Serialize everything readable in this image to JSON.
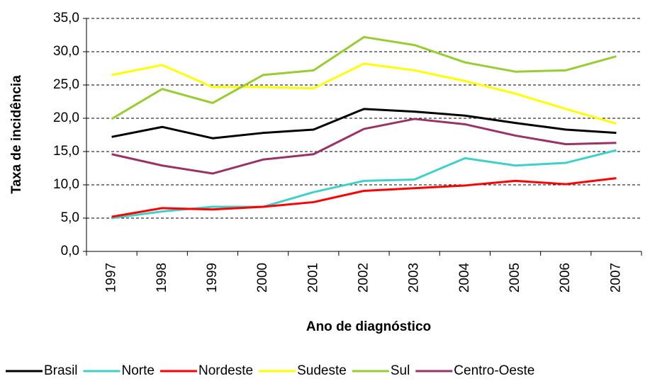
{
  "chart_data": {
    "type": "line",
    "x_label": "Ano de diagnóstico",
    "y_label": "Taxa de incidência",
    "categories": [
      "1997",
      "1998",
      "1999",
      "2000",
      "2001",
      "2002",
      "2003",
      "2004",
      "2005",
      "2006",
      "2007"
    ],
    "ylim": [
      0,
      35
    ],
    "yticks": [
      {
        "value": 0,
        "label": "0,0"
      },
      {
        "value": 5,
        "label": "5,0"
      },
      {
        "value": 10,
        "label": "10,0"
      },
      {
        "value": 15,
        "label": "15,0"
      },
      {
        "value": 20,
        "label": "20,0"
      },
      {
        "value": 25,
        "label": "25,0"
      },
      {
        "value": 30,
        "label": "30,0"
      },
      {
        "value": 35,
        "label": "35,0"
      }
    ],
    "grid": true,
    "legend": "bottom",
    "series": [
      {
        "name": "Brasil",
        "color": "#000000",
        "values": [
          17.2,
          18.7,
          17.0,
          17.8,
          18.3,
          21.4,
          21.0,
          20.4,
          19.3,
          18.3,
          17.8
        ]
      },
      {
        "name": "Norte",
        "color": "#40d0c8",
        "values": [
          5.0,
          6.0,
          6.7,
          6.7,
          8.9,
          10.6,
          10.8,
          14.0,
          12.9,
          13.3,
          15.2
        ]
      },
      {
        "name": "Nordeste",
        "color": "#ff0000",
        "values": [
          5.2,
          6.5,
          6.3,
          6.7,
          7.4,
          9.1,
          9.5,
          9.9,
          10.6,
          10.1,
          11.0
        ]
      },
      {
        "name": "Sudeste",
        "color": "#ffff00",
        "values": [
          26.5,
          28.0,
          24.7,
          24.7,
          24.5,
          28.2,
          27.2,
          25.6,
          23.7,
          21.4,
          19.2
        ]
      },
      {
        "name": "Sul",
        "color": "#99cc33",
        "values": [
          19.9,
          24.4,
          22.3,
          26.5,
          27.2,
          32.2,
          31.0,
          28.4,
          27.0,
          27.2,
          29.3
        ]
      },
      {
        "name": "Centro-Oeste",
        "color": "#993366",
        "values": [
          14.6,
          12.9,
          11.7,
          13.8,
          14.6,
          18.4,
          19.9,
          19.1,
          17.4,
          16.1,
          16.3
        ]
      }
    ]
  }
}
